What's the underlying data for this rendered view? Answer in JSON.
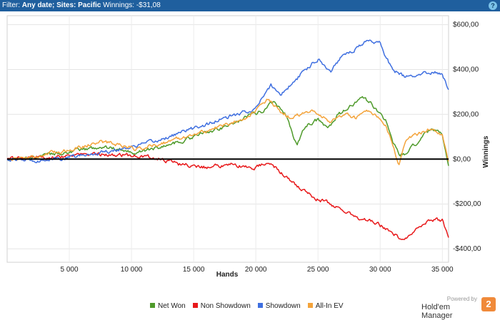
{
  "filter": {
    "prefix": "Filter: ",
    "date_label": "Any date; Sites: Pacific",
    "winnings_label": " Winnings: -$31,08"
  },
  "help_icon": "?",
  "logo": {
    "powered_by": "Powered by",
    "name": "Hold'em Manager",
    "badge": "2"
  },
  "chart_data": {
    "type": "line",
    "xlabel": "Hands",
    "ylabel": "Winnings",
    "xlim": [
      0,
      35500
    ],
    "ylim": [
      -460,
      640
    ],
    "xticks": [
      5000,
      10000,
      15000,
      20000,
      25000,
      30000,
      35000
    ],
    "xtick_labels": [
      "5 000",
      "10 000",
      "15 000",
      "20 000",
      "25 000",
      "30 000",
      "35 000"
    ],
    "yticks": [
      600,
      400,
      200,
      0,
      -200,
      -400
    ],
    "ytick_labels": [
      "$600,00",
      "$400,00",
      "$200,00",
      "$0,00",
      "-$200,00",
      "-$400,00"
    ],
    "grid": true,
    "legend_position": "bottom",
    "series": [
      {
        "name": "Net Won",
        "color": "#4e9a2a",
        "x": [
          0,
          2000,
          4000,
          6000,
          7500,
          9000,
          10500,
          12000,
          14000,
          16000,
          18000,
          19500,
          20500,
          21000,
          21500,
          22500,
          23300,
          24000,
          25000,
          25800,
          26500,
          27500,
          28500,
          29200,
          30500,
          31000,
          31500,
          32000,
          33000,
          34000,
          35000,
          35500
        ],
        "y": [
          0,
          5,
          25,
          40,
          55,
          45,
          30,
          50,
          80,
          120,
          155,
          195,
          215,
          245,
          255,
          190,
          60,
          150,
          175,
          135,
          190,
          230,
          275,
          250,
          170,
          80,
          20,
          20,
          75,
          130,
          110,
          -30
        ]
      },
      {
        "name": "Non Showdown",
        "color": "#e8181a",
        "x": [
          0,
          3000,
          6000,
          9000,
          10500,
          12000,
          14000,
          16000,
          18000,
          20000,
          21000,
          22000,
          23500,
          25000,
          26500,
          28000,
          29500,
          31000,
          31800,
          33000,
          34000,
          35000,
          35500
        ],
        "y": [
          0,
          10,
          20,
          20,
          15,
          5,
          -25,
          -35,
          -25,
          -40,
          -10,
          -60,
          -130,
          -180,
          -210,
          -260,
          -280,
          -330,
          -360,
          -310,
          -270,
          -270,
          -350
        ]
      },
      {
        "name": "Showdown",
        "color": "#3f6fe0",
        "x": [
          0,
          2000,
          4000,
          6000,
          8000,
          10000,
          12000,
          14000,
          16000,
          18000,
          20000,
          21200,
          22000,
          23000,
          24000,
          25000,
          26000,
          27000,
          28000,
          29000,
          30000,
          30500,
          31000,
          32000,
          33000,
          34000,
          35000,
          35500
        ],
        "y": [
          0,
          -5,
          0,
          15,
          35,
          55,
          80,
          120,
          155,
          190,
          225,
          330,
          290,
          340,
          400,
          450,
          390,
          470,
          490,
          530,
          520,
          450,
          400,
          365,
          370,
          390,
          380,
          310
        ]
      },
      {
        "name": "All-In EV",
        "color": "#f4a33a",
        "x": [
          0,
          2000,
          4000,
          6000,
          7500,
          9000,
          10500,
          12000,
          14000,
          16000,
          18000,
          19500,
          21000,
          22000,
          23000,
          24000,
          25000,
          26000,
          27000,
          28000,
          29000,
          30000,
          30500,
          31000,
          31500,
          32000,
          33000,
          34000,
          35000,
          35500
        ],
        "y": [
          0,
          10,
          30,
          55,
          80,
          65,
          45,
          65,
          95,
          125,
          160,
          195,
          265,
          210,
          180,
          215,
          210,
          165,
          200,
          185,
          210,
          175,
          140,
          60,
          -20,
          80,
          110,
          140,
          100,
          -10
        ]
      }
    ]
  }
}
